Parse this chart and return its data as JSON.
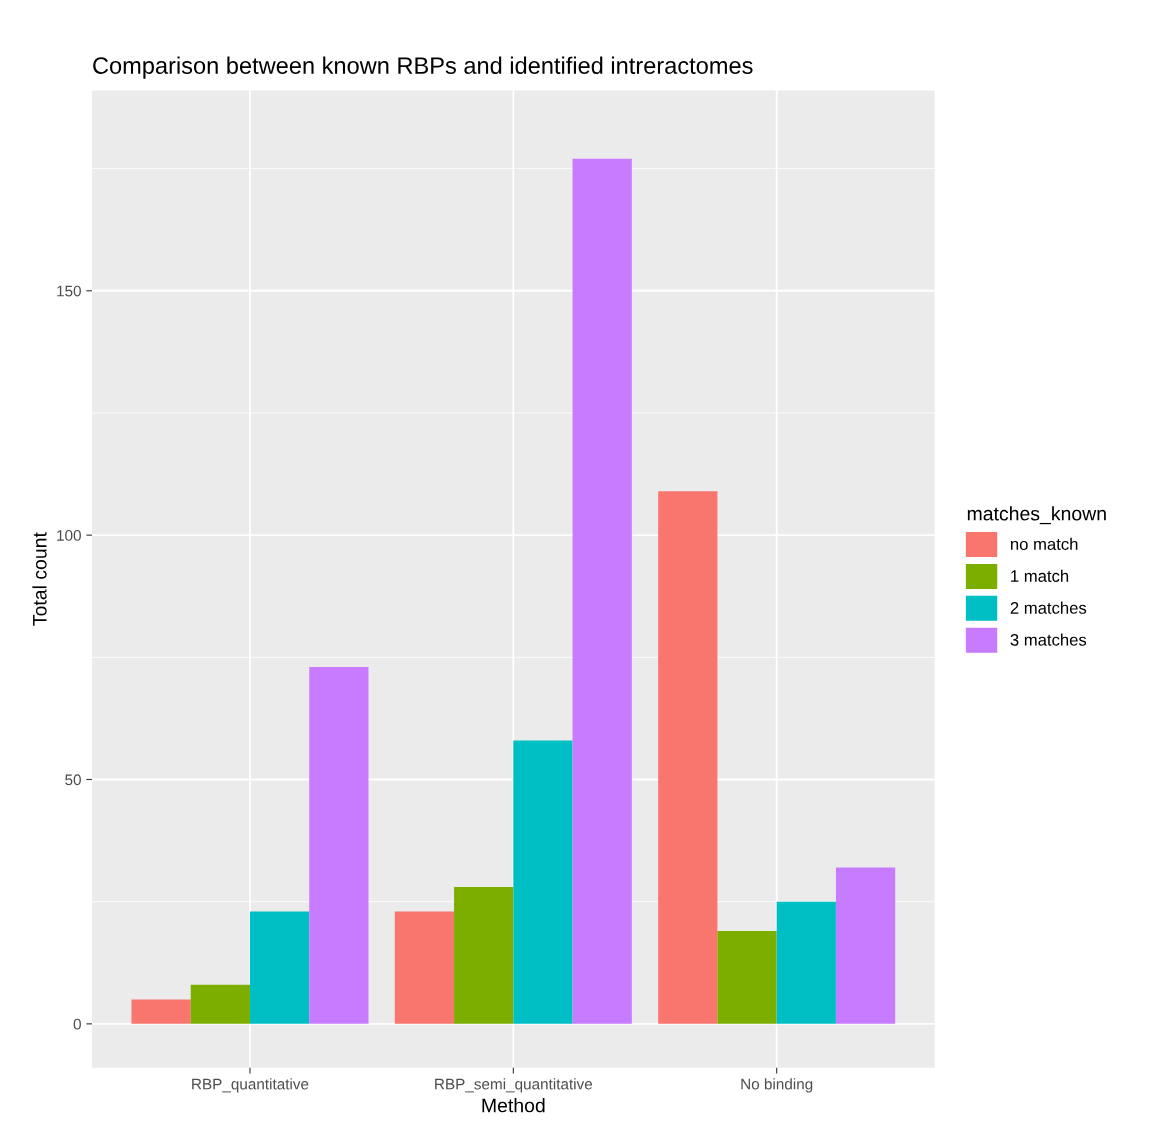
{
  "chart_data": {
    "type": "bar",
    "title": "Comparison between known RBPs and identified intreractomes",
    "xlabel": "Method",
    "ylabel": "Total count",
    "legend_title": "matches_known",
    "categories": [
      "RBP_quantitative",
      "RBP_semi_quantitative",
      "No binding"
    ],
    "series": [
      {
        "name": "no match",
        "color": "#f8766d",
        "values": [
          5,
          23,
          109
        ]
      },
      {
        "name": "1 match",
        "color": "#7cae00",
        "values": [
          8,
          28,
          19
        ]
      },
      {
        "name": "2 matches",
        "color": "#00bfc4",
        "values": [
          23,
          58,
          25
        ]
      },
      {
        "name": "3 matches",
        "color": "#c77cff",
        "values": [
          73,
          177,
          32
        ]
      }
    ],
    "ylim": [
      -9,
      191
    ],
    "yticks": [
      0,
      50,
      100,
      150
    ],
    "grid": true,
    "legend": "right"
  }
}
